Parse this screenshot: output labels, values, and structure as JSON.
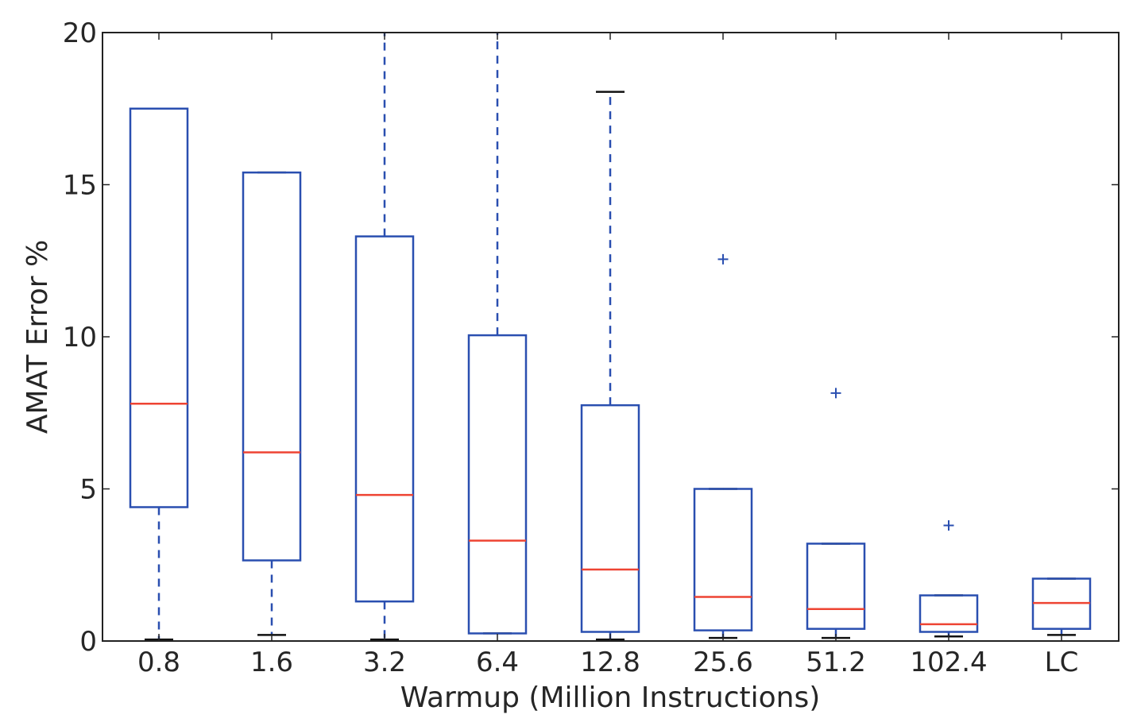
{
  "chart_data": {
    "type": "box",
    "xlabel": "Warmup (Million Instructions)",
    "ylabel": "AMAT Error %",
    "ylim": [
      0,
      20
    ],
    "yticks": [
      0,
      5,
      10,
      15,
      20
    ],
    "grid": false,
    "colors": {
      "box": "#2a4fb0",
      "median": "#ee4433",
      "cap": "#111111",
      "frame": "#222222"
    },
    "categories": [
      "0.8",
      "1.6",
      "3.2",
      "6.4",
      "12.8",
      "25.6",
      "51.2",
      "102.4",
      "LC"
    ],
    "boxes": [
      {
        "whislo": 0.05,
        "q1": 4.4,
        "med": 7.8,
        "q3": 17.5,
        "whishi": 17.5,
        "fliers": []
      },
      {
        "whislo": 0.2,
        "q1": 2.65,
        "med": 6.2,
        "q3": 15.4,
        "whishi": 15.4,
        "fliers": []
      },
      {
        "whislo": 0.05,
        "q1": 1.3,
        "med": 4.8,
        "q3": 13.3,
        "whishi": 21.0,
        "fliers": []
      },
      {
        "whislo": 0.25,
        "q1": 0.25,
        "med": 3.3,
        "q3": 10.05,
        "whishi": 21.0,
        "fliers": []
      },
      {
        "whislo": 0.05,
        "q1": 0.3,
        "med": 2.35,
        "q3": 7.75,
        "whishi": 18.05,
        "fliers": []
      },
      {
        "whislo": 0.1,
        "q1": 0.35,
        "med": 1.45,
        "q3": 5.0,
        "whishi": 5.0,
        "fliers": [
          12.55
        ]
      },
      {
        "whislo": 0.1,
        "q1": 0.4,
        "med": 1.05,
        "q3": 3.2,
        "whishi": 3.2,
        "fliers": [
          8.15
        ]
      },
      {
        "whislo": 0.15,
        "q1": 0.3,
        "med": 0.55,
        "q3": 1.5,
        "whishi": 1.5,
        "fliers": [
          3.8
        ]
      },
      {
        "whislo": 0.2,
        "q1": 0.4,
        "med": 1.25,
        "q3": 2.05,
        "whishi": 2.05,
        "fliers": []
      }
    ]
  }
}
